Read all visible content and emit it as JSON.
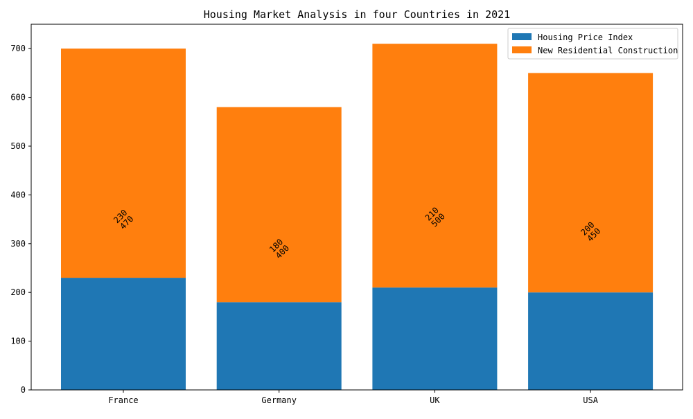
{
  "chart_data": {
    "type": "bar",
    "stacked": true,
    "title": "Housing Market Analysis in four Countries in 2021",
    "xlabel": "",
    "ylabel": "",
    "categories": [
      "France",
      "Germany",
      "UK",
      "USA"
    ],
    "series": [
      {
        "name": "Housing Price Index",
        "values": [
          230,
          180,
          210,
          200
        ],
        "color": "#1f77b4"
      },
      {
        "name": "New Residential Construction",
        "values": [
          470,
          400,
          500,
          450
        ],
        "color": "#ff7f0e"
      }
    ],
    "ylim": [
      0,
      750
    ],
    "yticks": [
      0,
      100,
      200,
      300,
      400,
      500,
      600,
      700
    ],
    "grid": false,
    "legend_position": "top-right",
    "data_labels": [
      [
        "230",
        "470"
      ],
      [
        "180",
        "400"
      ],
      [
        "210",
        "500"
      ],
      [
        "200",
        "450"
      ]
    ]
  }
}
